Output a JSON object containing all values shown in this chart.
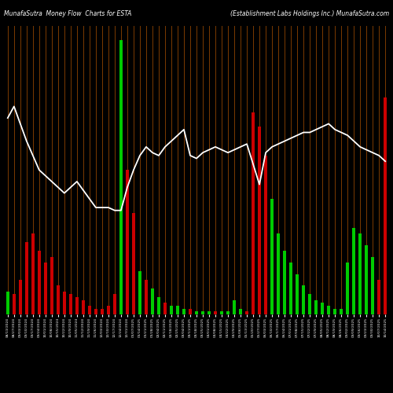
{
  "title_left": "MunafaSutra  Money Flow  Charts for ESTA",
  "title_right": "(Establishment Labs Holdings Inc.) MunafaSutra.com",
  "background_color": "#000000",
  "bar_colors": [
    "green",
    "red",
    "red",
    "red",
    "red",
    "red",
    "red",
    "red",
    "red",
    "red",
    "red",
    "red",
    "red",
    "red",
    "red",
    "red",
    "red",
    "red",
    "green",
    "red",
    "red",
    "green",
    "red",
    "green",
    "green",
    "red",
    "green",
    "green",
    "green",
    "red",
    "green",
    "green",
    "green",
    "red",
    "green",
    "green",
    "green",
    "green",
    "red",
    "red",
    "red",
    "red",
    "green",
    "green",
    "green",
    "green",
    "green",
    "green",
    "green",
    "green",
    "green",
    "green",
    "green",
    "green",
    "green",
    "green",
    "green",
    "green",
    "green",
    "red",
    "red"
  ],
  "bar_heights_pct": [
    8,
    7,
    12,
    25,
    28,
    22,
    18,
    20,
    10,
    8,
    7,
    6,
    5,
    3,
    2,
    2,
    3,
    7,
    95,
    50,
    35,
    15,
    12,
    9,
    6,
    4,
    3,
    3,
    2,
    2,
    1,
    1,
    1,
    1,
    1,
    1,
    5,
    2,
    1,
    70,
    65,
    55,
    40,
    28,
    22,
    18,
    14,
    10,
    7,
    5,
    4,
    3,
    2,
    2,
    18,
    30,
    28,
    24,
    20,
    12,
    75
  ],
  "line_values_pct": [
    68,
    72,
    66,
    60,
    55,
    50,
    48,
    46,
    44,
    42,
    44,
    46,
    43,
    40,
    37,
    37,
    37,
    36,
    36,
    44,
    50,
    55,
    58,
    56,
    55,
    58,
    60,
    62,
    64,
    55,
    54,
    56,
    57,
    58,
    57,
    56,
    57,
    58,
    59,
    52,
    45,
    56,
    58,
    59,
    60,
    61,
    62,
    63,
    63,
    64,
    65,
    66,
    64,
    63,
    62,
    60,
    58,
    57,
    56,
    55,
    53
  ],
  "dates": [
    "08/13/2024",
    "08/27/2024",
    "09/03/2024",
    "09/10/2024",
    "09/17/2024",
    "09/24/2024",
    "10/01/2024",
    "10/08/2024",
    "10/15/2024",
    "10/22/2024",
    "10/29/2024",
    "11/05/2024",
    "11/12/2024",
    "11/19/2024",
    "11/26/2024",
    "12/03/2024",
    "12/10/2024",
    "12/17/2024",
    "12/24/2024",
    "12/31/2024",
    "01/07/2025",
    "01/14/2025",
    "01/21/2025",
    "01/28/2025",
    "02/04/2025",
    "02/11/2025",
    "02/18/2025",
    "02/25/2025",
    "03/04/2025",
    "03/11/2025",
    "03/18/2025",
    "03/25/2025",
    "04/01/2025",
    "04/08/2025",
    "04/15/2025",
    "04/22/2025",
    "04/29/2025",
    "05/06/2025",
    "05/13/2025",
    "05/20/2025",
    "05/27/2025",
    "06/03/2025",
    "06/10/2025",
    "06/17/2025",
    "06/24/2025",
    "07/01/2025",
    "07/08/2025",
    "07/15/2025",
    "07/22/2025",
    "07/29/2025",
    "08/05/2025",
    "08/12/2025",
    "08/19/2025",
    "08/26/2025",
    "09/02/2025",
    "09/09/2025",
    "09/16/2025",
    "09/23/2025",
    "09/30/2025",
    "10/07/2025",
    "10/14/2025"
  ],
  "grid_color": "#7B3A00",
  "line_color": "#FFFFFF",
  "green_color": "#00CC00",
  "red_color": "#CC0000",
  "figsize": [
    5.0,
    5.0
  ],
  "dpi": 100
}
